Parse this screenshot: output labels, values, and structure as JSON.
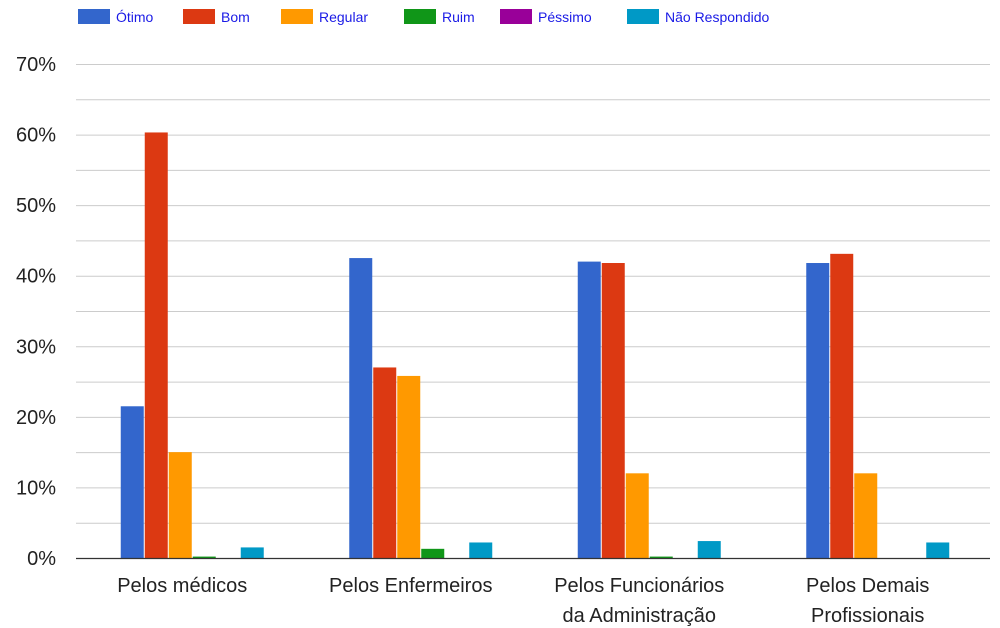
{
  "chart_data": {
    "type": "bar",
    "categories": [
      [
        "Pelos médicos"
      ],
      [
        "Pelos Enfermeiros"
      ],
      [
        "Pelos Funcionários",
        "da Administração"
      ],
      [
        "Pelos Demais",
        "Profissionais"
      ]
    ],
    "series": [
      {
        "name": "Ótimo",
        "color": "#3366cc",
        "values": [
          21.5,
          42.5,
          42.0,
          41.8
        ]
      },
      {
        "name": "Bom",
        "color": "#dc3912",
        "values": [
          60.3,
          27.0,
          41.8,
          43.1
        ]
      },
      {
        "name": "Regular",
        "color": "#ff9900",
        "values": [
          15.0,
          25.8,
          12.0,
          12.0
        ]
      },
      {
        "name": "Ruim",
        "color": "#109618",
        "values": [
          0.2,
          1.3,
          0.2,
          0.0
        ]
      },
      {
        "name": "Péssimo",
        "color": "#990099",
        "values": [
          0.0,
          0.0,
          0.0,
          0.0
        ]
      },
      {
        "name": "Não Respondido",
        "color": "#0099c6",
        "values": [
          1.5,
          2.2,
          2.4,
          2.2
        ]
      }
    ],
    "ylim": [
      0,
      70
    ],
    "yticks": [
      "0%",
      "10%",
      "20%",
      "30%",
      "40%",
      "50%",
      "60%",
      "70%"
    ],
    "grid": true,
    "legend_position": "top-left"
  }
}
